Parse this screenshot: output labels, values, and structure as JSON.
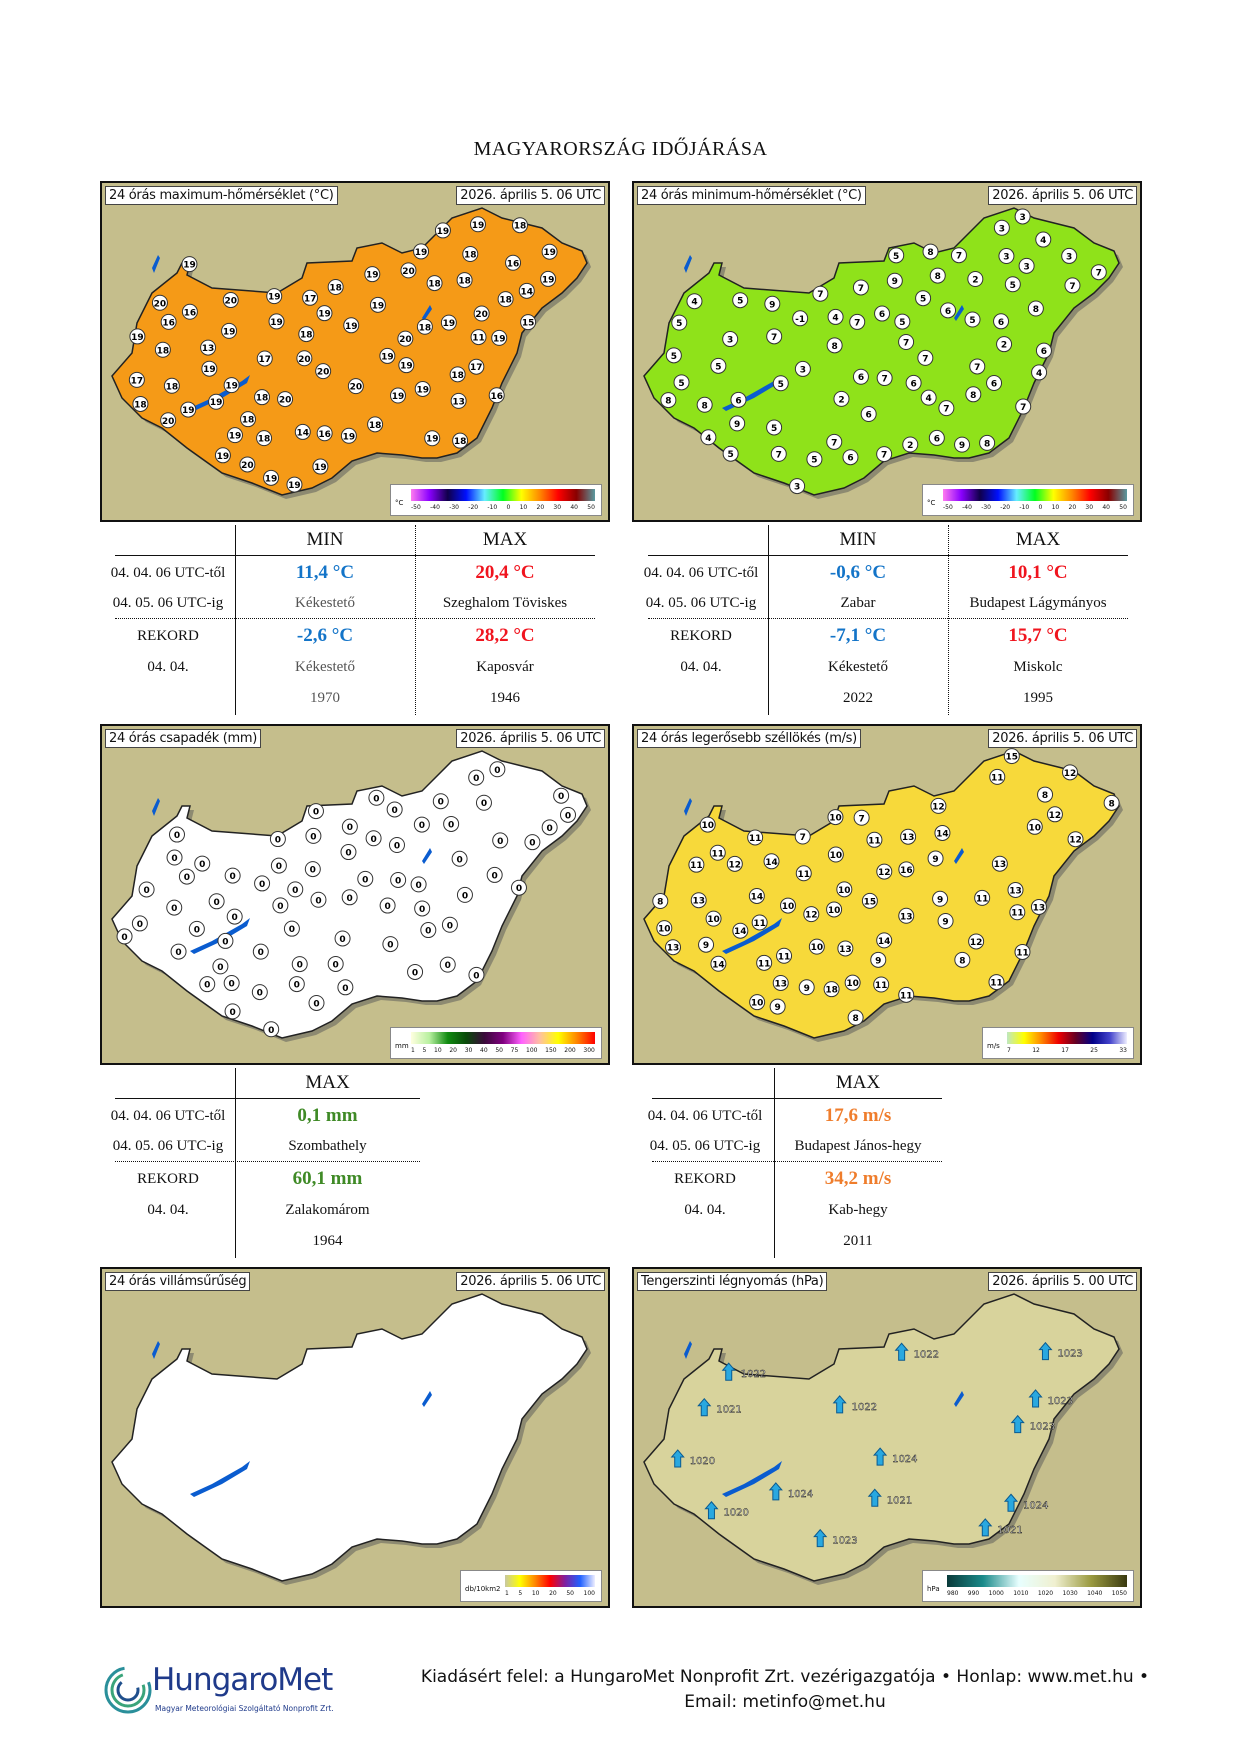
{
  "title": "MAGYARORSZÁG IDŐJÁRÁSA",
  "maps": [
    {
      "id": "tmax",
      "label": "24 órás maximum-hőmérséklet (°C)",
      "date": "2026. április 5. 06 UTC",
      "fill": "#f59a17",
      "legend": {
        "unit": "°C",
        "ticks": [
          "-50",
          "-40",
          "-30",
          "-20",
          "-10",
          "0",
          "10",
          "20",
          "30",
          "40",
          "50"
        ]
      },
      "stations": [
        "18",
        "17",
        "20",
        "19",
        "19",
        "18",
        "14",
        "20",
        "19",
        "19",
        "18",
        "19",
        "11",
        "19",
        "17",
        "13",
        "13",
        "19",
        "19",
        "19",
        "16",
        "16",
        "18",
        "18",
        "16",
        "18",
        "19",
        "17",
        "19",
        "18",
        "16",
        "20",
        "20",
        "18",
        "18",
        "16",
        "18",
        "15",
        "19",
        "18",
        "19",
        "18",
        "18",
        "14",
        "17",
        "19",
        "19",
        "19",
        "20",
        "19",
        "18",
        "19",
        "20",
        "19",
        "20",
        "19",
        "19",
        "19",
        "19",
        "18",
        "19",
        "20",
        "19",
        "19",
        "19",
        "20",
        "20",
        "18",
        "20",
        "19",
        "19",
        "19",
        "19",
        "18"
      ]
    },
    {
      "id": "tmin",
      "label": "24 órás minimum-hőmérséklet (°C)",
      "date": "2026. április 5. 06 UTC",
      "fill": "#8fe21a",
      "legend": {
        "unit": "°C",
        "ticks": [
          "-50",
          "-40",
          "-30",
          "-20",
          "-10",
          "0",
          "10",
          "20",
          "30",
          "40",
          "50"
        ]
      },
      "stations": [
        "4",
        "5",
        "3",
        "4",
        "2",
        "-1",
        "6",
        "5",
        "8",
        "2",
        "7",
        "6",
        "8",
        "3",
        "6",
        "5",
        "5",
        "7",
        "5",
        "7",
        "9",
        "6",
        "7",
        "8",
        "3",
        "6",
        "7",
        "7",
        "9",
        "5",
        "7",
        "6",
        "8",
        "5",
        "2",
        "5",
        "5",
        "4",
        "9",
        "8",
        "7",
        "7",
        "3",
        "7",
        "8",
        "7",
        "9",
        "8",
        "3",
        "5",
        "5",
        "6",
        "2",
        "7",
        "5",
        "5",
        "3",
        "4",
        "7",
        "6",
        "8",
        "3",
        "7",
        "4",
        "6",
        "4",
        "5",
        "6",
        "7",
        "6",
        "7",
        "3"
      ]
    },
    {
      "id": "precip",
      "label": "24 órás csapadék (mm)",
      "date": "2026. április 5. 06 UTC",
      "fill": "#ffffff",
      "legend": {
        "unit": "mm",
        "ticks": [
          "1",
          "5",
          "10",
          "20",
          "30",
          "40",
          "50",
          "75",
          "100",
          "150",
          "200",
          "300"
        ]
      },
      "stations": [
        "0",
        "0",
        "0",
        "0",
        "0",
        "0",
        "0",
        "0",
        "0",
        "0",
        "0",
        "0",
        "0",
        "0",
        "0",
        "0",
        "0",
        "0",
        "0",
        "0",
        "0",
        "0",
        "0",
        "0",
        "0",
        "0",
        "0",
        "0",
        "0",
        "0",
        "0",
        "0",
        "0",
        "0",
        "0",
        "0",
        "0",
        "0",
        "0",
        "0",
        "0",
        "0",
        "0",
        "0",
        "0",
        "0",
        "0",
        "0",
        "0",
        "0",
        "0",
        "0",
        "0",
        "0",
        "0",
        "0",
        "0",
        "0",
        "0",
        "0",
        "0",
        "0",
        "0",
        "0",
        "0",
        "0",
        "0",
        "0",
        "0",
        "0"
      ]
    },
    {
      "id": "wind",
      "label": "24 órás legerősebb széllökés (m/s)",
      "date": "2026. április 5. 06 UTC",
      "fill": "#f7d93a",
      "legend": {
        "unit": "m/s",
        "ticks": [
          "7",
          "12",
          "17",
          "25",
          "33"
        ]
      },
      "stations": [
        "9",
        "11",
        "9",
        "10",
        "10",
        "7",
        "8",
        "10",
        "9",
        "11",
        "12",
        "13",
        "13",
        "15",
        "12",
        "11",
        "14",
        "10",
        "12",
        "11",
        "12",
        "14",
        "13",
        "18",
        "14",
        "14",
        "10",
        "13",
        "14",
        "11",
        "11",
        "10",
        "9",
        "10",
        "13",
        "12",
        "13",
        "10",
        "8",
        "8",
        "9",
        "13",
        "11",
        "13",
        "16",
        "11",
        "14",
        "13",
        "10",
        "11",
        "11",
        "11",
        "10",
        "12",
        "15",
        "11",
        "10",
        "8",
        "8",
        "7",
        "11",
        "12",
        "9",
        "11",
        "11",
        "9",
        "10",
        "12"
      ]
    },
    {
      "id": "lightning",
      "label": "24 órás villámsűrűség",
      "date": "2026. április 5. 06 UTC",
      "fill": "#ffffff",
      "legend": {
        "unit": "db/10km2",
        "ticks": [
          "1",
          "5",
          "10",
          "20",
          "50",
          "100"
        ]
      },
      "stations": []
    },
    {
      "id": "pressure",
      "label": "Tengerszinti légnyomás (hPa)",
      "date": "2026. április 5. 00 UTC",
      "fill": "#d8d39c",
      "legend": {
        "unit": "hPa",
        "ticks": [
          "980",
          "990",
          "1000",
          "1010",
          "1020",
          "1030",
          "1040",
          "1050"
        ]
      },
      "stations": [
        "1021",
        "1020",
        "1023",
        "1023",
        "1022",
        "1020",
        "1024",
        "1021",
        "1022",
        "1023",
        "1023",
        "1024",
        "1021",
        "1022",
        "1024"
      ]
    }
  ],
  "tables": {
    "temp_left": {
      "head_min": "MIN",
      "head_max": "MAX",
      "from": "04. 04. 06 UTC-től",
      "to": "04. 05. 06 UTC-ig",
      "rekord": "REKORD",
      "date": "04. 04.",
      "min_val": "11,4 °C",
      "min_place": "Kékestető",
      "max_val": "20,4 °C",
      "max_place": "Szeghalom Töviskes",
      "rec_min_val": "-2,6 °C",
      "rec_min_place": "Kékestető",
      "rec_min_year": "1970",
      "rec_max_val": "28,2 °C",
      "rec_max_place": "Kaposvár",
      "rec_max_year": "1946"
    },
    "temp_right": {
      "head_min": "MIN",
      "head_max": "MAX",
      "from": "04. 04. 06 UTC-től",
      "to": "04. 05. 06 UTC-ig",
      "rekord": "REKORD",
      "date": "04. 04.",
      "min_val": "-0,6 °C",
      "min_place": "Zabar",
      "max_val": "10,1 °C",
      "max_place": "Budapest Lágymányos",
      "rec_min_val": "-7,1 °C",
      "rec_min_place": "Kékestető",
      "rec_min_year": "2022",
      "rec_max_val": "15,7 °C",
      "rec_max_place": "Miskolc",
      "rec_max_year": "1995"
    },
    "precip": {
      "head_max": "MAX",
      "from": "04. 04. 06 UTC-től",
      "to": "04. 05. 06 UTC-ig",
      "rekord": "REKORD",
      "date": "04. 04.",
      "max_val": "0,1 mm",
      "max_place": "Szombathely",
      "rec_max_val": "60,1 mm",
      "rec_max_place": "Zalakomárom",
      "rec_max_year": "1964"
    },
    "wind": {
      "head_max": "MAX",
      "from": "04. 04. 06 UTC-től",
      "to": "04. 05. 06 UTC-ig",
      "rekord": "REKORD",
      "date": "04. 04.",
      "max_val": "17,6 m/s",
      "max_place": "Budapest János-hegy",
      "rec_max_val": "34,2 m/s",
      "rec_max_place": "Kab-hegy",
      "rec_max_year": "2011"
    }
  },
  "footer": {
    "line1": "Kiadásért felel: a HungaroMet Nonprofit Zrt. vezérigazgatója • Honlap: www.met.hu •",
    "line2": "Email: metinfo@met.hu",
    "logo_name": "HungaroMet",
    "logo_sub": "Magyar Meteorológiai Szolgáltató Nonprofit Zrt."
  }
}
